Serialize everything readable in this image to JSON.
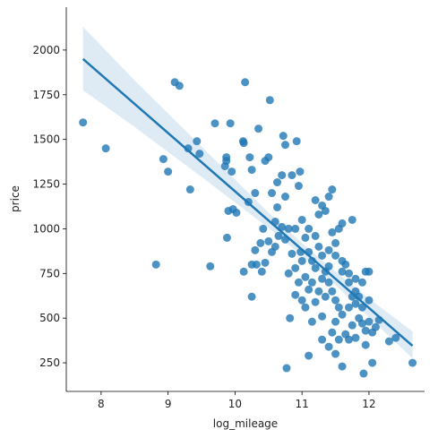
{
  "chart_data": {
    "type": "scatter",
    "xlabel": "log_mileage",
    "ylabel": "price",
    "color": "#1f77b4",
    "xlim": [
      7.48,
      12.83
    ],
    "ylim": [
      90,
      2240
    ],
    "xticks": [
      8,
      9,
      10,
      11,
      12
    ],
    "yticks": [
      250,
      500,
      750,
      1000,
      1250,
      1500,
      1750,
      2000
    ],
    "x": [
      7.73,
      8.07,
      8.82,
      8.93,
      9.0,
      9.1,
      9.17,
      9.3,
      9.33,
      9.43,
      9.47,
      9.63,
      9.7,
      9.85,
      9.87,
      9.87,
      9.9,
      9.88,
      9.93,
      9.95,
      9.97,
      10.02,
      10.12,
      10.13,
      10.15,
      10.13,
      10.2,
      10.22,
      10.25,
      10.25,
      10.25,
      10.3,
      10.32,
      10.35,
      10.3,
      10.38,
      10.4,
      10.45,
      10.52,
      10.5,
      10.55,
      10.6,
      10.63,
      10.63,
      10.7,
      10.72,
      10.75,
      10.75,
      10.77,
      10.8,
      10.82,
      10.85,
      10.9,
      10.92,
      10.95,
      10.97,
      11.0,
      11.05,
      11.1,
      11.15,
      11.2,
      11.25,
      11.3,
      11.35,
      11.4,
      11.45,
      11.5,
      11.55,
      11.6,
      11.65,
      11.7,
      11.75,
      11.8,
      11.85,
      11.9,
      11.95,
      12.0,
      12.05,
      12.1,
      12.15,
      12.3,
      12.4,
      12.65,
      11.92,
      12.05,
      11.5,
      11.6,
      11.3,
      11.1,
      11.0,
      10.95,
      10.9,
      10.85,
      10.8,
      10.75,
      10.7,
      10.65,
      10.6,
      10.55,
      10.5,
      10.45,
      10.42,
      11.35,
      11.4,
      11.45,
      11.3,
      11.25,
      11.2,
      11.55,
      11.6,
      11.75,
      11.5,
      11.45,
      11.4,
      11.35,
      11.25,
      11.15,
      11.05,
      10.98,
      11.1,
      11.2,
      11.6,
      11.7,
      11.8,
      11.85,
      11.9,
      11.95,
      12.0,
      11.7,
      11.65,
      11.55,
      11.45,
      11.4,
      11.75,
      11.8,
      11.5,
      11.3,
      11.15,
      11.05,
      10.9,
      11.0,
      11.1,
      11.2,
      11.3,
      11.4,
      11.5,
      11.6,
      11.7,
      11.8,
      11.9,
      12.0,
      11.95
    ],
    "values": [
      1595,
      1450,
      800,
      1390,
      1320,
      1820,
      1800,
      1450,
      1220,
      1490,
      1420,
      790,
      1590,
      1350,
      1400,
      1380,
      1100,
      950,
      1590,
      1320,
      1110,
      1090,
      1490,
      1480,
      1820,
      760,
      1150,
      1400,
      1330,
      620,
      800,
      880,
      800,
      1560,
      1200,
      920,
      760,
      1380,
      1720,
      1400,
      1200,
      900,
      1120,
      1260,
      1300,
      1520,
      1470,
      1180,
      220,
      1000,
      500,
      1300,
      1000,
      1490,
      1240,
      1320,
      1050,
      950,
      870,
      820,
      780,
      900,
      850,
      760,
      700,
      650,
      600,
      560,
      520,
      800,
      750,
      620,
      580,
      500,
      470,
      760,
      600,
      420,
      450,
      490,
      370,
      390,
      250,
      190,
      250,
      300,
      230,
      380,
      290,
      600,
      700,
      780,
      860,
      750,
      940,
      1010,
      960,
      1040,
      870,
      930,
      810,
      1000,
      1100,
      1180,
      1220,
      1130,
      1080,
      1160,
      1000,
      1030,
      1050,
      920,
      980,
      880,
      620,
      650,
      700,
      730,
      870,
      1000,
      960,
      820,
      700,
      650,
      620,
      560,
      430,
      480,
      380,
      410,
      380,
      420,
      340,
      460,
      390,
      480,
      510,
      480,
      560,
      630,
      820,
      660,
      590,
      720,
      790,
      850,
      760,
      560,
      720,
      700,
      760,
      350
    ],
    "regression": {
      "x": [
        7.73,
        12.65
      ],
      "values": [
        1950,
        345
      ]
    },
    "ci": {
      "x": [
        7.73,
        8.5,
        9.5,
        10.5,
        11.0,
        11.5,
        12.0,
        12.65
      ],
      "upper": [
        2130,
        1830,
        1460,
        1090,
        920,
        760,
        610,
        425
      ],
      "lower": [
        1775,
        1570,
        1290,
        1005,
        850,
        685,
        505,
        275
      ]
    }
  }
}
